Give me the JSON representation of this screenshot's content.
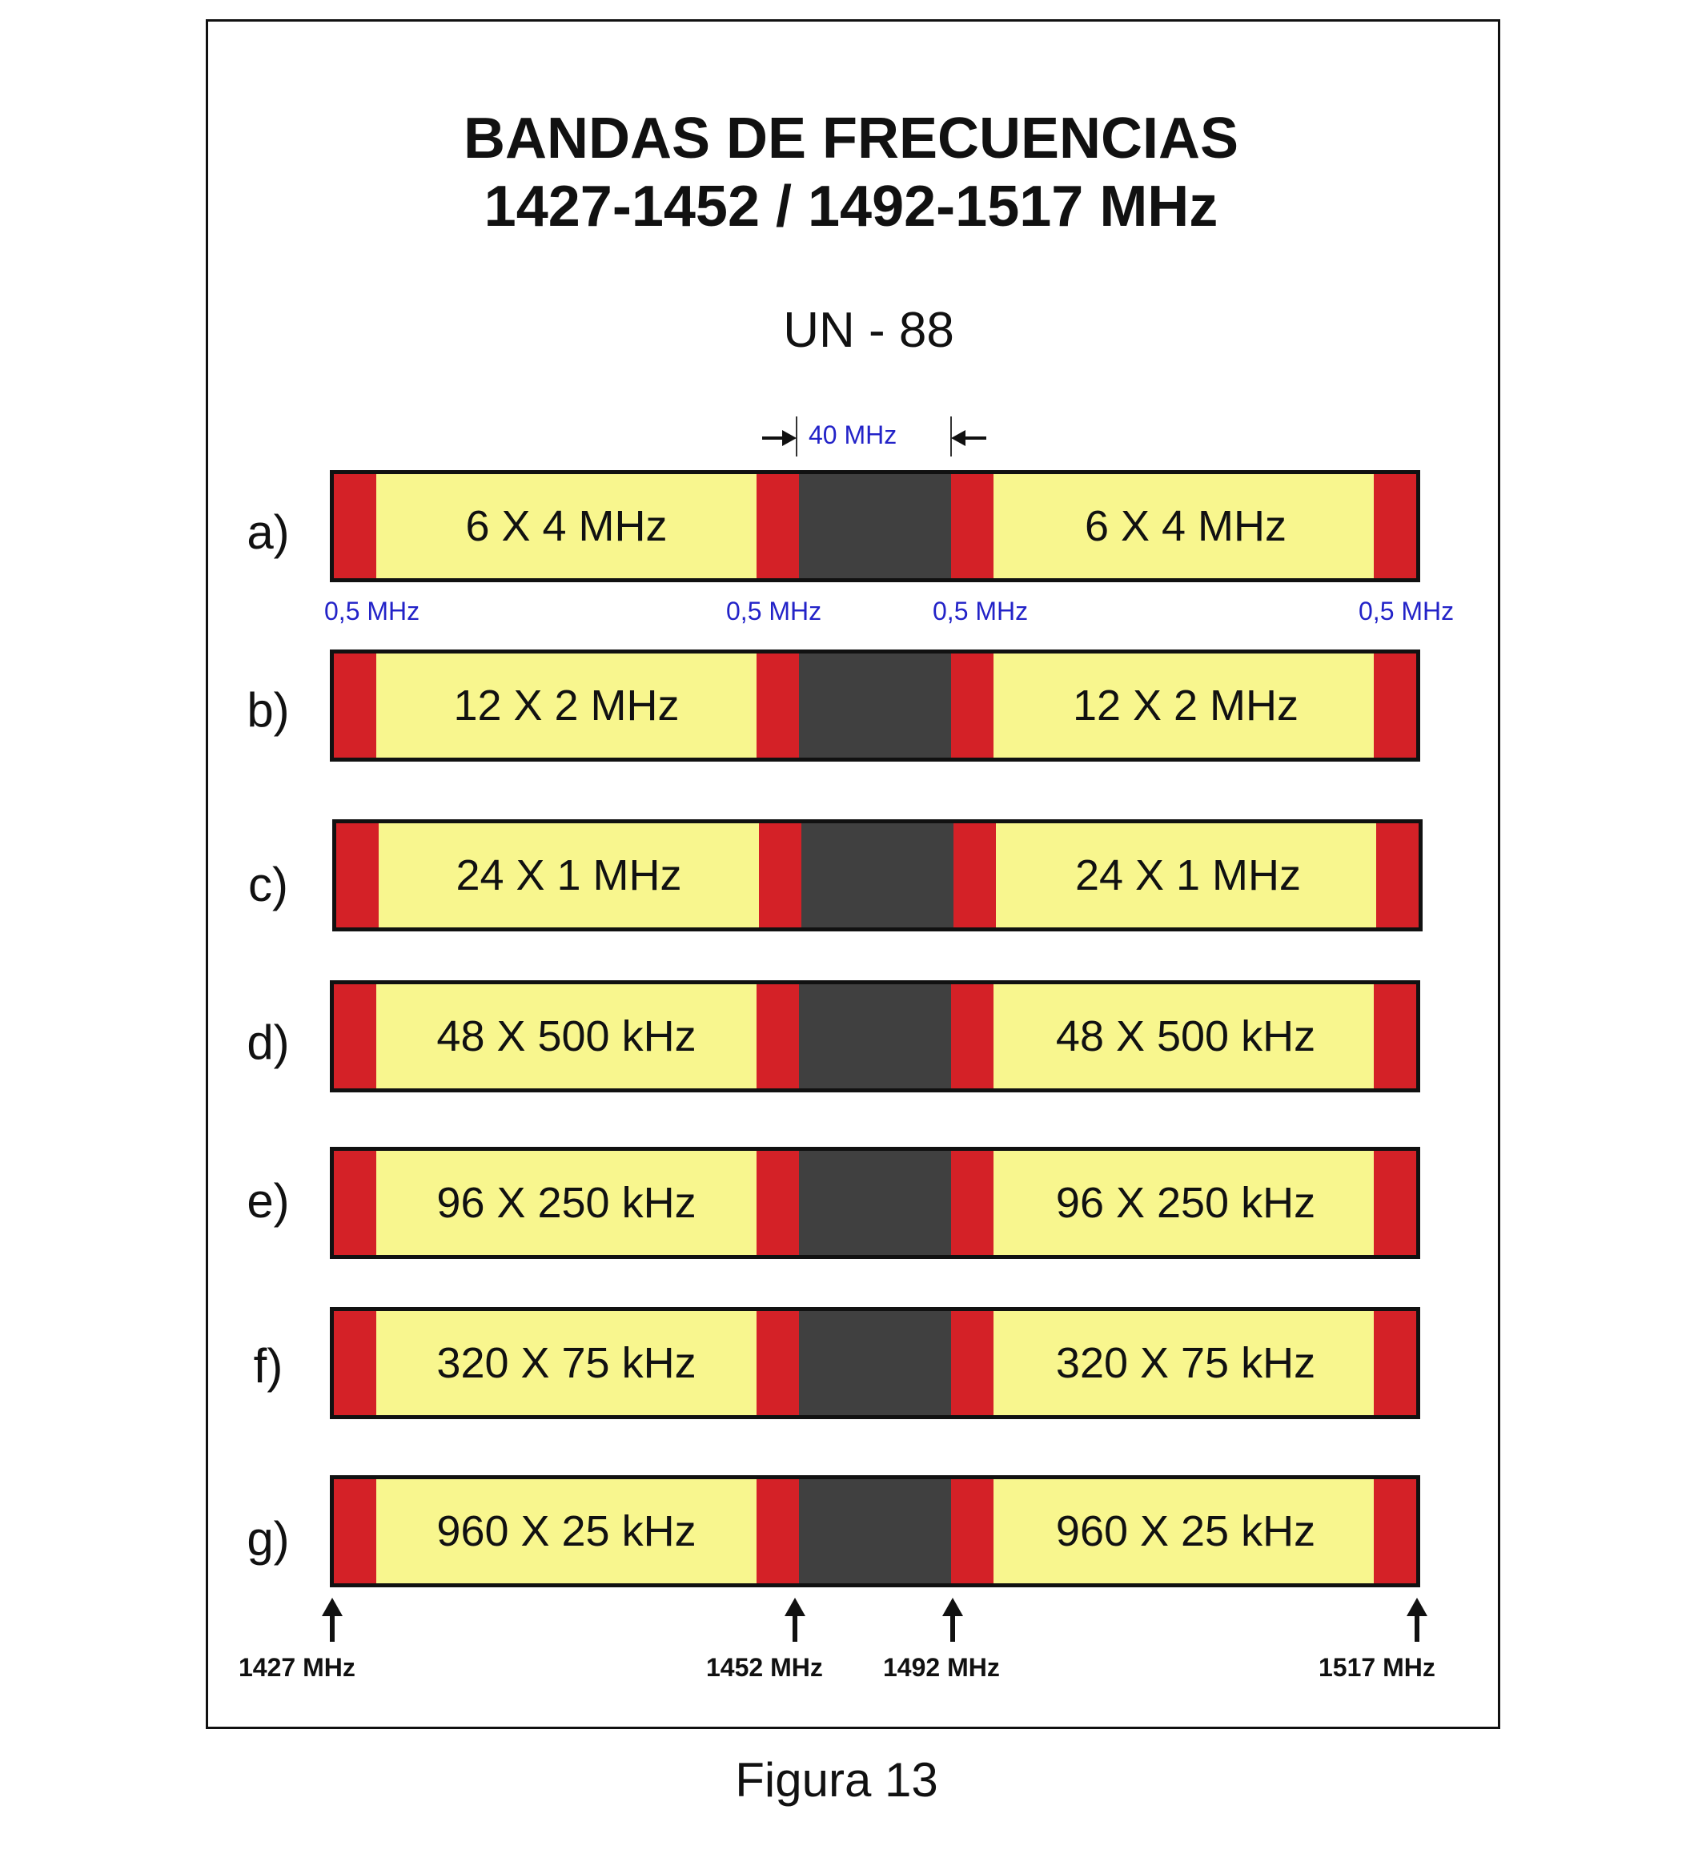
{
  "title_line1": "BANDAS DE FRECUENCIAS",
  "title_line2": "1427-1452 / 1492-1517 MHz",
  "subtitle": "UN - 88",
  "gap_label": "40  MHz",
  "guard_labels": [
    "0,5 MHz",
    "0,5 MHz",
    "0,5 MHz",
    "0,5 MHz"
  ],
  "rows": [
    {
      "label": "a)",
      "left_text": "6 X 4 MHz",
      "right_text": "6 X 4 MHz"
    },
    {
      "label": "b)",
      "left_text": "12 X 2 MHz",
      "right_text": "12 X 2 MHz"
    },
    {
      "label": "c)",
      "left_text": "24 X 1 MHz",
      "right_text": "24 X 1 MHz"
    },
    {
      "label": "d)",
      "left_text": "48 X 500  kHz",
      "right_text": "48 X 500  kHz"
    },
    {
      "label": "e)",
      "left_text": "96 X 250  kHz",
      "right_text": "96 X 250  kHz"
    },
    {
      "label": "f)",
      "left_text": "320 X 75 kHz",
      "right_text": "320 X 75 kHz"
    },
    {
      "label": "g)",
      "left_text": "960 X 25 kHz",
      "right_text": "960 X 25 kHz"
    }
  ],
  "frequency_markers": [
    "1427 MHz",
    "1452 MHz",
    "1492 MHz",
    "1517 MHz"
  ],
  "caption": "Figura  13",
  "colors": {
    "band": "#f8f68e",
    "guard": "#d42127",
    "gap": "#404040",
    "annotation": "#2323c8"
  }
}
